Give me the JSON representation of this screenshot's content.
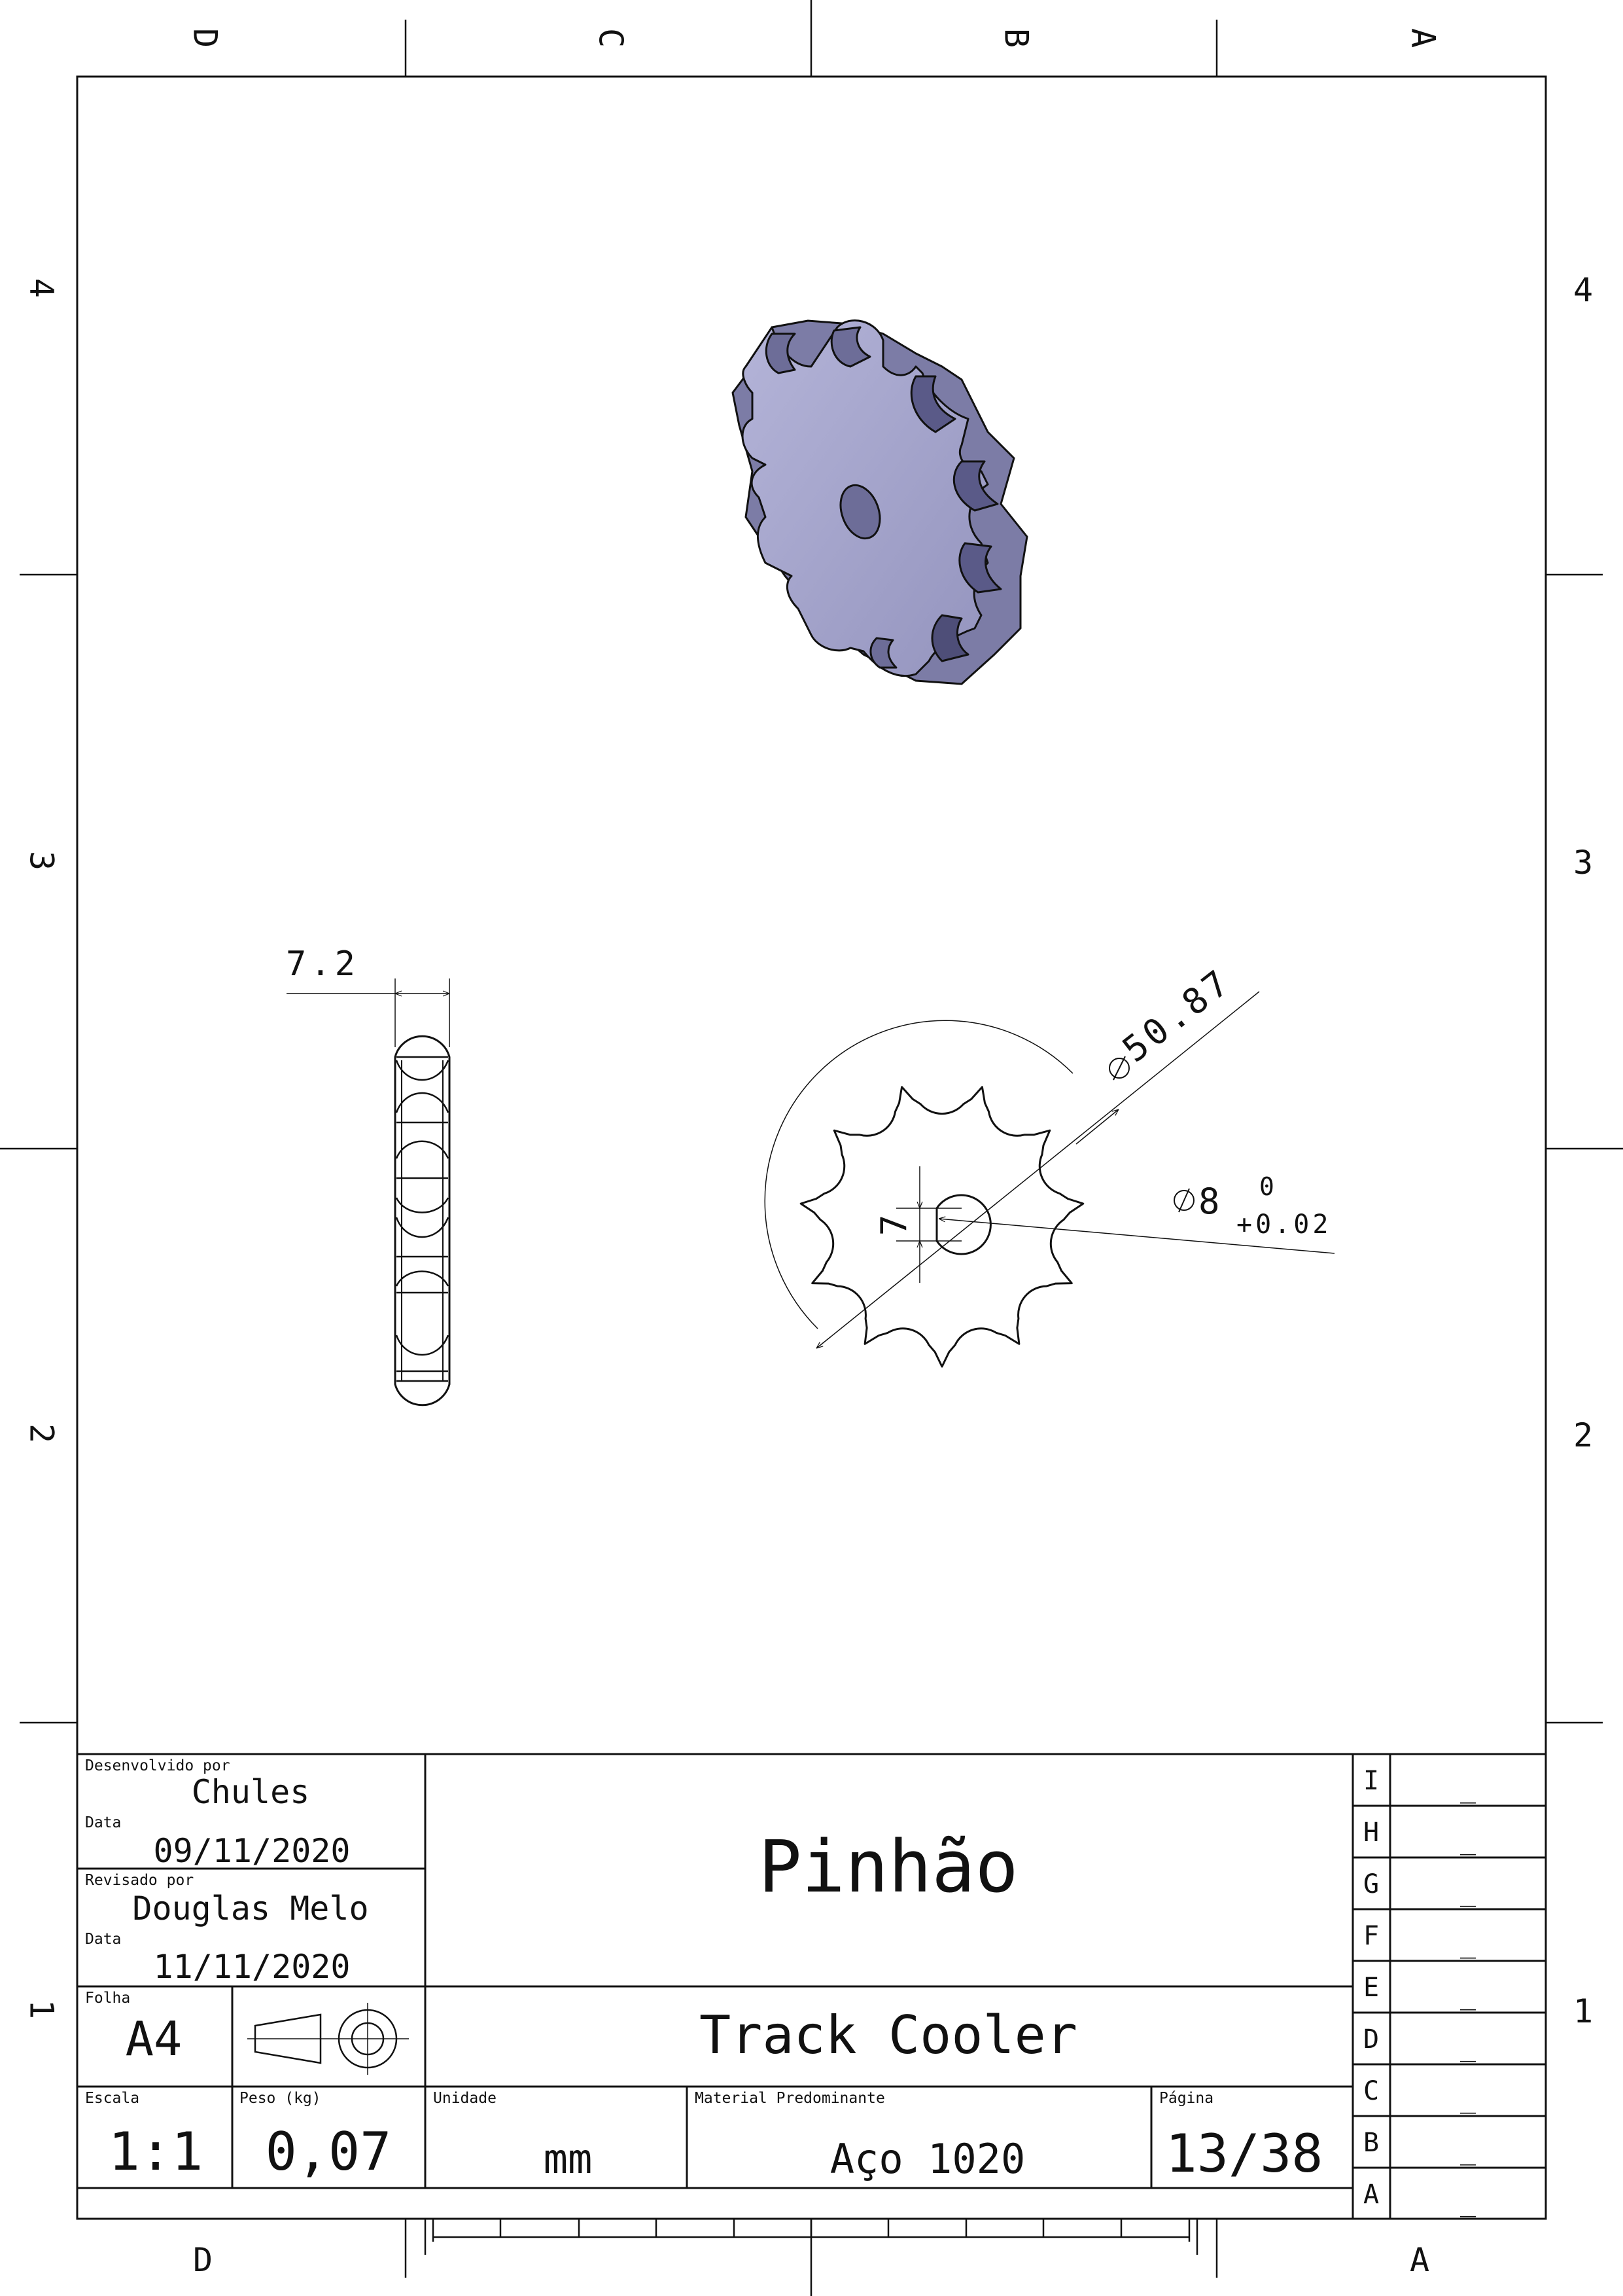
{
  "zone_labels": {
    "top": [
      "D",
      "C",
      "B",
      "A"
    ],
    "bottom": [
      "D",
      "A"
    ],
    "left": [
      "4",
      "3",
      "2",
      "1"
    ],
    "right": [
      "4",
      "3",
      "2",
      "1"
    ]
  },
  "dimensions": {
    "thickness": "7.2",
    "outer_diameter": "50.87",
    "bore_diameter": "8",
    "bore_tol_upper": "0",
    "bore_tol_lower": "+0.02",
    "flat": "7"
  },
  "title_block": {
    "developed_by_label": "Desenvolvido por",
    "developed_by": "Chules",
    "date1_label": "Data",
    "date1": "09/11/2020",
    "reviewed_by_label": "Revisado por",
    "reviewed_by": "Douglas Melo",
    "date2_label": "Data",
    "date2": "11/11/2020",
    "sheet_label": "Folha",
    "sheet": "A4",
    "title": "Pinhão",
    "project": "Track Cooler",
    "scale_label": "Escala",
    "scale": "1:1",
    "weight_label": "Peso (kg)",
    "weight": "0,07",
    "unit_label": "Unidade",
    "unit": "mm",
    "material_label": "Material Predominante",
    "material": "Aço 1020",
    "page_label": "Página",
    "page": "13/38"
  },
  "revisions": [
    {
      "letter": "I",
      "value": "_"
    },
    {
      "letter": "H",
      "value": "_"
    },
    {
      "letter": "G",
      "value": "_"
    },
    {
      "letter": "F",
      "value": "_"
    },
    {
      "letter": "E",
      "value": "_"
    },
    {
      "letter": "D",
      "value": "_"
    },
    {
      "letter": "C",
      "value": "_"
    },
    {
      "letter": "B",
      "value": "_"
    },
    {
      "letter": "A",
      "value": "_"
    }
  ],
  "colors": {
    "line": "#111111",
    "part_face": "#a3a3c8",
    "part_side": "#7c7ca6",
    "part_shadow": "#4e4e78"
  }
}
